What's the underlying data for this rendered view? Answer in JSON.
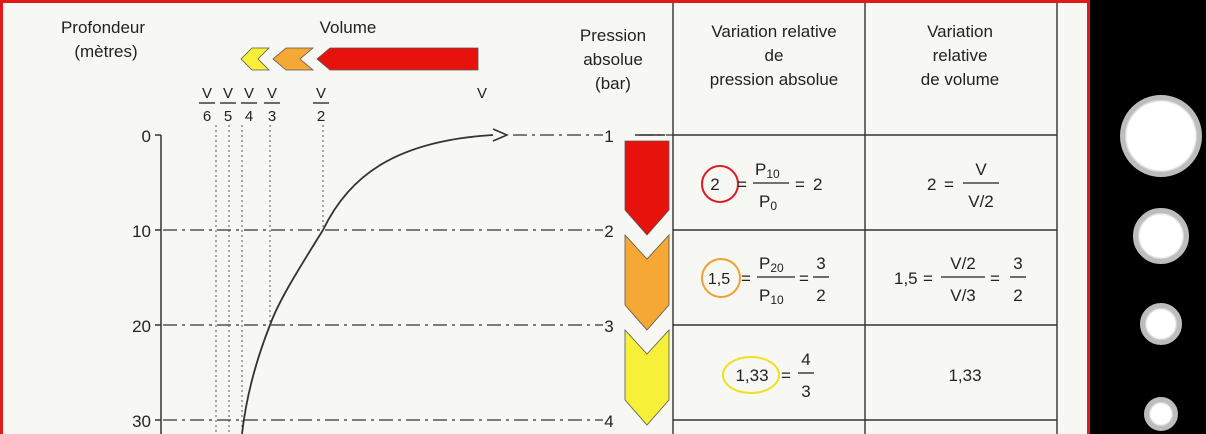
{
  "headers": {
    "depth": [
      "Profondeur",
      "(mètres)"
    ],
    "volume": "Volume",
    "pressure": [
      "Pression",
      "absolue",
      "(bar)"
    ],
    "rel_pressure": [
      "Variation relative",
      "de",
      "pression absolue"
    ],
    "rel_volume": [
      "Variation",
      "relative",
      "de volume"
    ]
  },
  "volume_fractions": [
    {
      "num": "V",
      "den": "6"
    },
    {
      "num": "V",
      "den": "5"
    },
    {
      "num": "V",
      "den": "4"
    },
    {
      "num": "V",
      "den": "3"
    },
    {
      "num": "V",
      "den": "2"
    }
  ],
  "volume_full": "V",
  "depth_ticks": [
    "0",
    "10",
    "20",
    "30"
  ],
  "pressure_values": [
    "1",
    "2",
    "3",
    "4"
  ],
  "rows": [
    {
      "ratio": "2",
      "circle_color": "#e01a1a",
      "p_num": "P",
      "p_num_sub": "10",
      "p_den": "P",
      "p_den_sub": "0",
      "p_result": "2",
      "v_lhs": "2",
      "v_num": "V",
      "v_den": "V/2"
    },
    {
      "ratio": "1,5",
      "circle_color": "#f0a030",
      "p_num": "P",
      "p_num_sub": "20",
      "p_den": "P",
      "p_den_sub": "10",
      "p_result_num": "3",
      "p_result_den": "2",
      "v_lhs": "1,5",
      "v_num": "V/2",
      "v_den": "V/3",
      "v_result_num": "3",
      "v_result_den": "2"
    },
    {
      "ratio": "1,33",
      "circle_color": "#f0e020",
      "p_result_num": "4",
      "p_result_den": "3",
      "v_value": "1,33"
    }
  ],
  "colors": {
    "red": "#e8120c",
    "orange": "#f5a834",
    "yellow": "#f7f038"
  }
}
